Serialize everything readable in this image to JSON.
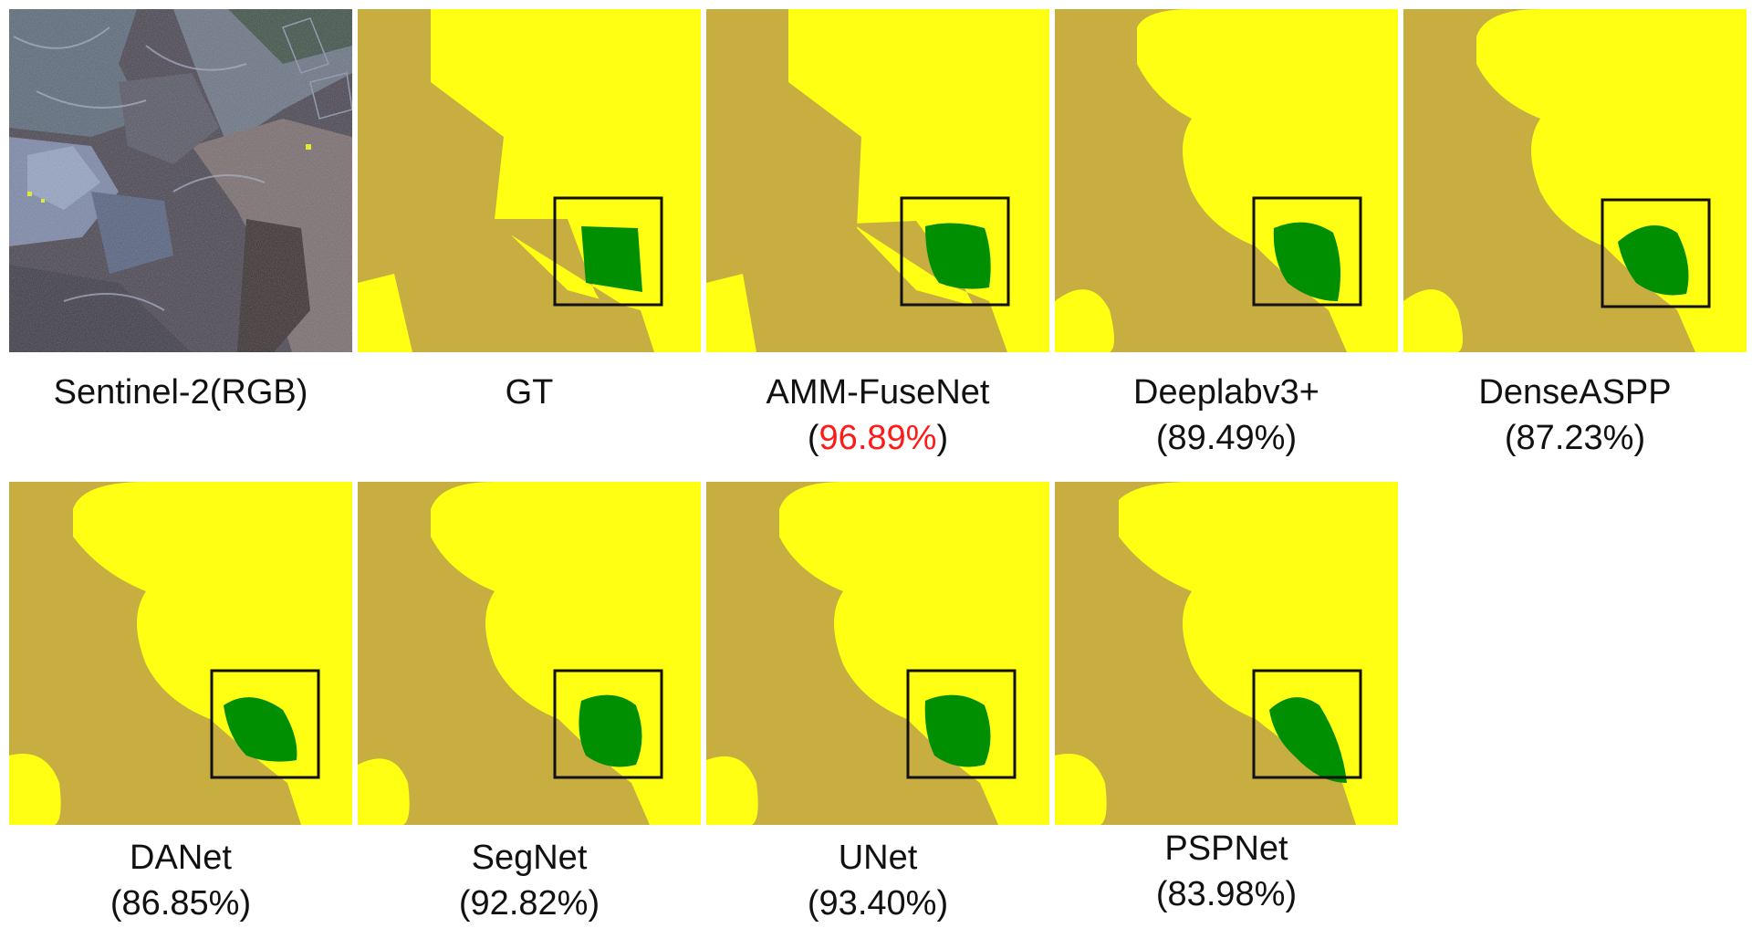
{
  "colors": {
    "background_class": "#c8ae40",
    "yellow_class": "#ffff14",
    "green_class": "#008f00",
    "highlight": "#e8141d",
    "box": "#111111"
  },
  "panels": [
    {
      "name": "Sentinel-2(RGB)",
      "score": ""
    },
    {
      "name": "GT",
      "score": ""
    },
    {
      "name": "AMM-FuseNet",
      "score": "96.89%",
      "score_highlighted": true
    },
    {
      "name": "Deeplabv3+",
      "score": "89.49%"
    },
    {
      "name": "DenseASPP",
      "score": "87.23%"
    },
    {
      "name": "DANet",
      "score": "86.85%"
    },
    {
      "name": "SegNet",
      "score": "92.82%"
    },
    {
      "name": "UNet",
      "score": "93.40%"
    },
    {
      "name": "PSPNet",
      "score": "83.98%"
    }
  ]
}
